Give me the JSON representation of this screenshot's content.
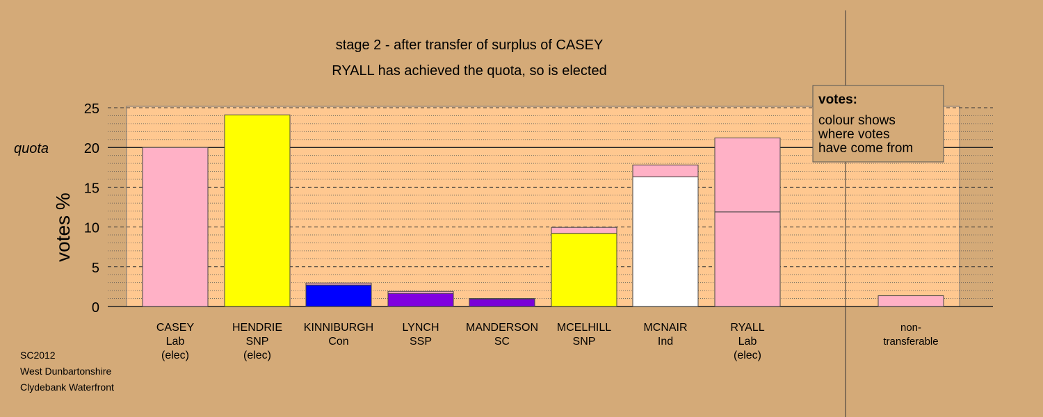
{
  "chart_data": {
    "type": "bar",
    "stacked": true,
    "title": "stage 2 - after transfer of surplus of CASEY",
    "subtitle": "RYALL has achieved the quota, so is elected",
    "ylabel": "votes %",
    "ylim": [
      0,
      25
    ],
    "yticks": [
      "0",
      "5",
      "10",
      "15",
      "quota 20",
      "25"
    ],
    "quota": 20,
    "quota_label": "quota",
    "grid": true,
    "legend": {
      "placement": "top-right",
      "title": "votes:",
      "lines": [
        "colour shows",
        "where votes",
        "have come from"
      ]
    },
    "categories": [
      {
        "lines": [
          "CASEY",
          "Lab",
          "(elec)"
        ],
        "segments": [
          {
            "value": 20.0,
            "color": "#ffb1c6"
          }
        ]
      },
      {
        "lines": [
          "HENDRIE",
          "SNP",
          "(elec)"
        ],
        "segments": [
          {
            "value": 24.1,
            "color": "#ffff00"
          }
        ]
      },
      {
        "lines": [
          "KINNIBURGH",
          "Con"
        ],
        "segments": [
          {
            "value": 2.7,
            "color": "#0000ff"
          },
          {
            "value": 0.25,
            "color": "#ffb1c6"
          }
        ]
      },
      {
        "lines": [
          "LYNCH",
          "SSP"
        ],
        "segments": [
          {
            "value": 1.65,
            "color": "#8000e0"
          },
          {
            "value": 0.25,
            "color": "#ffb1c6"
          }
        ]
      },
      {
        "lines": [
          "MANDERSON",
          "SC"
        ],
        "segments": [
          {
            "value": 0.95,
            "color": "#7a00d8"
          },
          {
            "value": 0.05,
            "color": "#ffb1c6"
          }
        ]
      },
      {
        "lines": [
          "MCELHILL",
          "SNP"
        ],
        "segments": [
          {
            "value": 9.2,
            "color": "#ffff00"
          },
          {
            "value": 0.75,
            "color": "#ffb1c6"
          }
        ]
      },
      {
        "lines": [
          "MCNAIR",
          "Ind"
        ],
        "segments": [
          {
            "value": 16.3,
            "color": "#ffffff"
          },
          {
            "value": 1.5,
            "color": "#ffb1c6"
          }
        ]
      },
      {
        "lines": [
          "RYALL",
          "Lab",
          "(elec)"
        ],
        "segments": [
          {
            "value": 11.9,
            "color": "#ffb1c6"
          },
          {
            "value": 9.3,
            "color": "#ffb1c6"
          }
        ]
      },
      {
        "lines": [
          "non-",
          "transferable"
        ],
        "segments": [
          {
            "value": 1.35,
            "color": "#ffb1c6"
          }
        ]
      }
    ]
  },
  "footer": {
    "year": "SC2012",
    "council": "West Dunbartonshire",
    "ward": "Clydebank Waterfront"
  },
  "colors": {
    "background": "#d4aa78",
    "plot_area": "#ffc890",
    "legend_bg": "#d4aa78"
  }
}
